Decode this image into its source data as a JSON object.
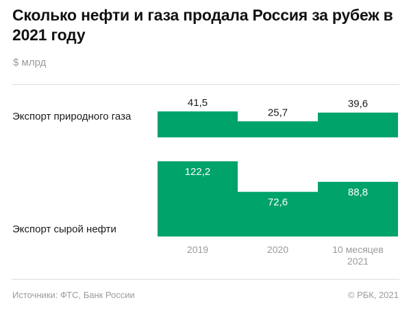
{
  "title": "Сколько нефти и газа продала Россия за рубеж в 2021 году",
  "unit": "$ млрд",
  "source": "Источники: ФТС, Банк России",
  "copyright": "© РБК, 2021",
  "colors": {
    "bar": "#00a36a",
    "label_inside": "#ffffff",
    "label_outside": "#1a1a1a",
    "axis_text": "#9a9a9a"
  },
  "chart_data": {
    "type": "bar",
    "title": "Сколько нефти и газа продала Россия за рубеж в 2021 году",
    "ylabel": "$ млрд",
    "categories": [
      "2019",
      "2020",
      "10 месяцев 2021"
    ],
    "series": [
      {
        "name": "Экспорт природного газа",
        "values": [
          41.5,
          25.7,
          39.6
        ],
        "labels": [
          "41,5",
          "25,7",
          "39,6"
        ],
        "ylim": [
          0,
          41.5
        ]
      },
      {
        "name": "Экспорт сырой нефти",
        "values": [
          122.2,
          72.6,
          88.8
        ],
        "labels": [
          "122,2",
          "72,6",
          "88,8"
        ],
        "ylim": [
          0,
          122.2
        ]
      }
    ]
  }
}
